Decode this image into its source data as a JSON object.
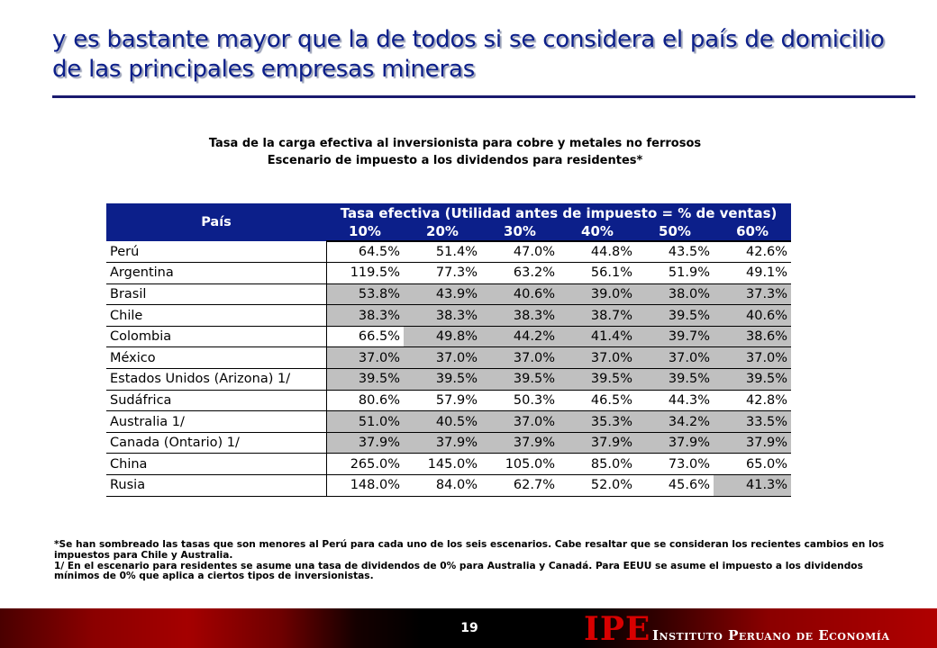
{
  "slide": {
    "title": "y es bastante mayor que la de todos si se considera el país de domicilio de las principales empresas mineras",
    "subtitle_line1": "Tasa de la carga efectiva al inversionista para cobre y metales no ferrosos",
    "subtitle_line2": "Escenario de impuesto a los dividendos para residentes*",
    "page_number": "19"
  },
  "table": {
    "country_header": "País",
    "group_header": "Tasa efectiva (Utilidad antes de impuesto = % de ventas)",
    "columns": [
      "10%",
      "20%",
      "30%",
      "40%",
      "50%",
      "60%"
    ],
    "rows": [
      {
        "country": "Perú",
        "values": [
          "64.5%",
          "51.4%",
          "47.0%",
          "44.8%",
          "43.5%",
          "42.6%"
        ],
        "shaded": [
          false,
          false,
          false,
          false,
          false,
          false
        ]
      },
      {
        "country": "Argentina",
        "values": [
          "119.5%",
          "77.3%",
          "63.2%",
          "56.1%",
          "51.9%",
          "49.1%"
        ],
        "shaded": [
          false,
          false,
          false,
          false,
          false,
          false
        ]
      },
      {
        "country": "Brasil",
        "values": [
          "53.8%",
          "43.9%",
          "40.6%",
          "39.0%",
          "38.0%",
          "37.3%"
        ],
        "shaded": [
          true,
          true,
          true,
          true,
          true,
          true
        ]
      },
      {
        "country": "Chile",
        "values": [
          "38.3%",
          "38.3%",
          "38.3%",
          "38.7%",
          "39.5%",
          "40.6%"
        ],
        "shaded": [
          true,
          true,
          true,
          true,
          true,
          true
        ]
      },
      {
        "country": "Colombia",
        "values": [
          "66.5%",
          "49.8%",
          "44.2%",
          "41.4%",
          "39.7%",
          "38.6%"
        ],
        "shaded": [
          false,
          true,
          true,
          true,
          true,
          true
        ]
      },
      {
        "country": "México",
        "values": [
          "37.0%",
          "37.0%",
          "37.0%",
          "37.0%",
          "37.0%",
          "37.0%"
        ],
        "shaded": [
          true,
          true,
          true,
          true,
          true,
          true
        ]
      },
      {
        "country": "Estados Unidos (Arizona) 1/",
        "values": [
          "39.5%",
          "39.5%",
          "39.5%",
          "39.5%",
          "39.5%",
          "39.5%"
        ],
        "shaded": [
          true,
          true,
          true,
          true,
          true,
          true
        ]
      },
      {
        "country": "Sudáfrica",
        "values": [
          "80.6%",
          "57.9%",
          "50.3%",
          "46.5%",
          "44.3%",
          "42.8%"
        ],
        "shaded": [
          false,
          false,
          false,
          false,
          false,
          false
        ]
      },
      {
        "country": "Australia 1/",
        "values": [
          "51.0%",
          "40.5%",
          "37.0%",
          "35.3%",
          "34.2%",
          "33.5%"
        ],
        "shaded": [
          true,
          true,
          true,
          true,
          true,
          true
        ]
      },
      {
        "country": "Canada (Ontario) 1/",
        "values": [
          "37.9%",
          "37.9%",
          "37.9%",
          "37.9%",
          "37.9%",
          "37.9%"
        ],
        "shaded": [
          true,
          true,
          true,
          true,
          true,
          true
        ]
      },
      {
        "country": "China",
        "values": [
          "265.0%",
          "145.0%",
          "105.0%",
          "85.0%",
          "73.0%",
          "65.0%"
        ],
        "shaded": [
          false,
          false,
          false,
          false,
          false,
          false
        ]
      },
      {
        "country": "Rusia",
        "values": [
          "148.0%",
          "84.0%",
          "62.7%",
          "52.0%",
          "45.6%",
          "41.3%"
        ],
        "shaded": [
          false,
          false,
          false,
          false,
          false,
          true
        ]
      }
    ]
  },
  "footnotes": {
    "note_star": "*Se han sombreado las tasas que son menores al Perú para cada uno de los seis escenarios. Cabe resaltar que se consideran  los recientes cambios en los impuestos para Chile y Australia.",
    "note_1": "1/ En el escenario para residentes se asume una tasa de dividendos de 0% para Australia y Canadá. Para EEUU se asume el impuesto a los dividendos mínimos de 0% que aplica a ciertos tipos de inversionistas."
  },
  "logo": {
    "acronym": "IPE",
    "name": "Instituto Peruano de Economía"
  },
  "colors": {
    "title_blue": "#0c1f8a",
    "header_blue": "#0c1f8a",
    "shade_gray": "#c0c0c0",
    "logo_red": "#d80000"
  }
}
